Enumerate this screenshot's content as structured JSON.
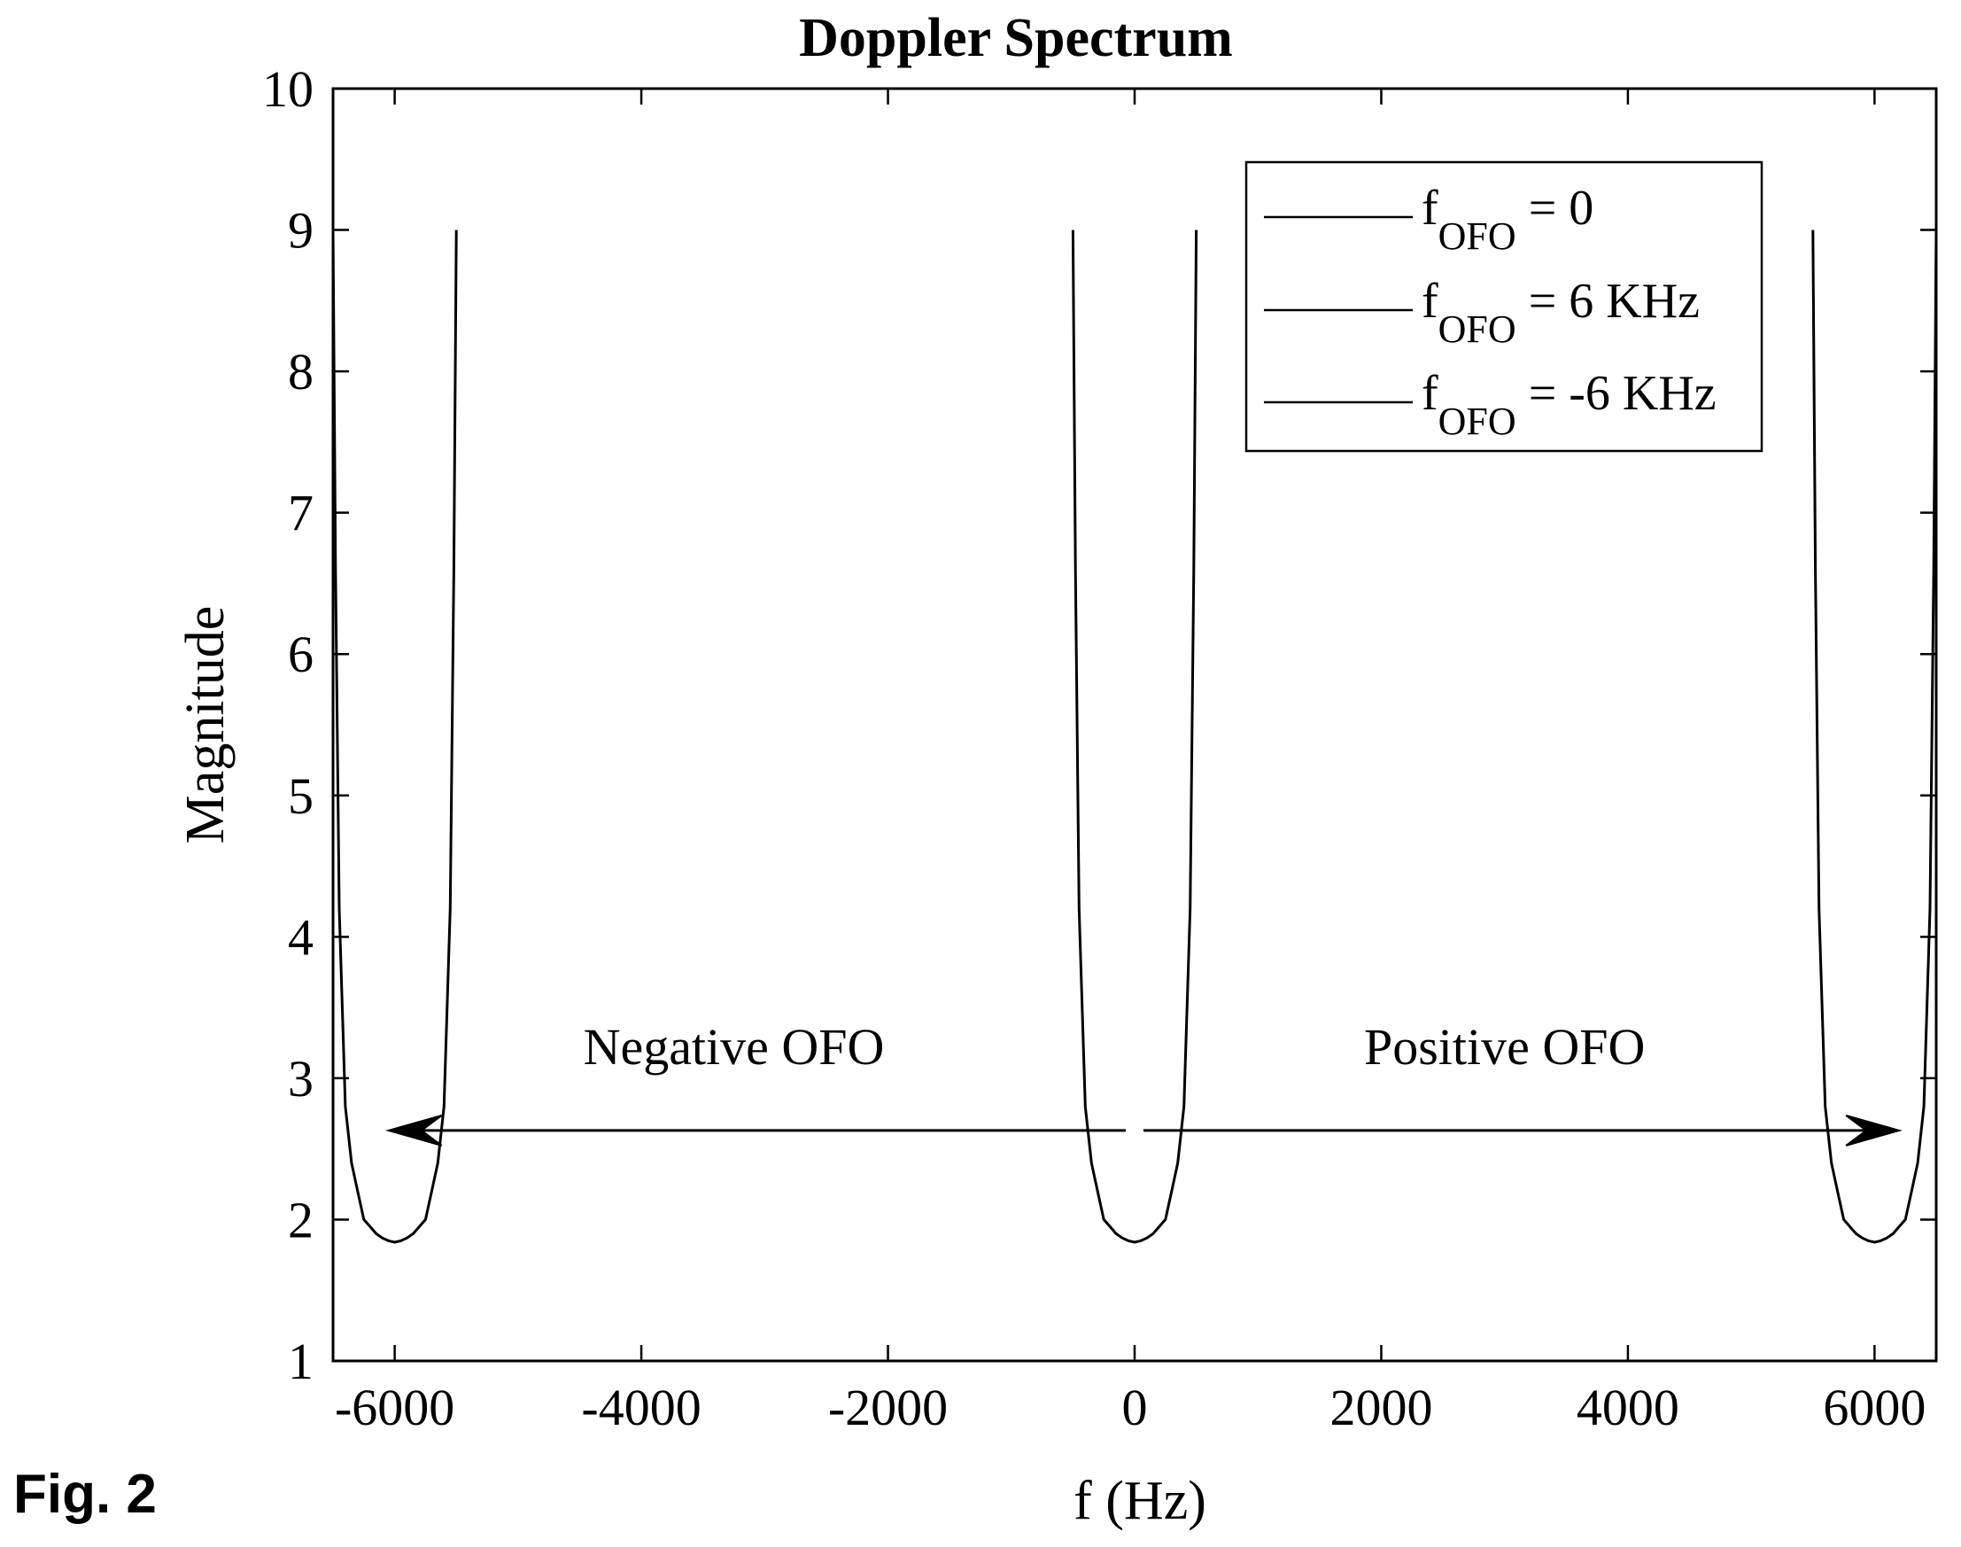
{
  "figure_label": "Fig. 2",
  "chart_data": {
    "type": "line",
    "title": "Doppler Spectrum",
    "xlabel": "f (Hz)",
    "ylabel": "Magnitude",
    "xlim": [
      -6500,
      6500
    ],
    "ylim": [
      1,
      10
    ],
    "xticks": [
      -6000,
      -4000,
      -2000,
      0,
      2000,
      4000,
      6000
    ],
    "yticks": [
      1,
      2,
      3,
      4,
      5,
      6,
      7,
      8,
      9,
      10
    ],
    "grid": false,
    "legend_position": "top-right",
    "legend": [
      {
        "main": "f",
        "sub": "OFO",
        "rest": " = 0"
      },
      {
        "main": "f",
        "sub": "OFO",
        "rest": " = 6 KHz"
      },
      {
        "main": "f",
        "sub": "OFO",
        "rest": " = -6 KHz"
      }
    ],
    "series": [
      {
        "center": 0,
        "fd": 500,
        "x": [
          -500,
          -480,
          -450,
          -400,
          -350,
          -300,
          -250,
          -200,
          -150,
          -100,
          -50,
          0,
          50,
          100,
          150,
          200,
          250,
          300,
          350,
          400,
          450,
          480,
          500
        ],
        "y": [
          9.0,
          6.6,
          4.2,
          2.8,
          2.4,
          2.2,
          2.0,
          1.95,
          1.9,
          1.87,
          1.85,
          1.84,
          1.85,
          1.87,
          1.9,
          1.95,
          2.0,
          2.2,
          2.4,
          2.8,
          4.2,
          6.6,
          9.0
        ]
      },
      {
        "center": 6000,
        "fd": 500,
        "x": [
          5500,
          5520,
          5550,
          5600,
          5650,
          5700,
          5750,
          5800,
          5850,
          5900,
          5950,
          6000,
          6050,
          6100,
          6150,
          6200,
          6250,
          6300,
          6350,
          6400,
          6450,
          6480,
          6500
        ],
        "y": [
          9.0,
          6.6,
          4.2,
          2.8,
          2.4,
          2.2,
          2.0,
          1.95,
          1.9,
          1.87,
          1.85,
          1.84,
          1.85,
          1.87,
          1.9,
          1.95,
          2.0,
          2.2,
          2.4,
          2.8,
          4.2,
          6.6,
          9.0
        ]
      },
      {
        "center": -6000,
        "fd": 500,
        "x": [
          -6500,
          -6480,
          -6450,
          -6400,
          -6350,
          -6300,
          -6250,
          -6200,
          -6150,
          -6100,
          -6050,
          -6000,
          -5950,
          -5900,
          -5850,
          -5800,
          -5750,
          -5700,
          -5650,
          -5600,
          -5550,
          -5520,
          -5500
        ],
        "y": [
          9.0,
          6.6,
          4.2,
          2.8,
          2.4,
          2.2,
          2.0,
          1.95,
          1.9,
          1.87,
          1.85,
          1.84,
          1.85,
          1.87,
          1.9,
          1.95,
          2.0,
          2.2,
          2.4,
          2.8,
          4.2,
          6.6,
          9.0
        ]
      }
    ],
    "annotations": [
      {
        "text": "Negative OFO",
        "x": -3250,
        "y": 3.1
      },
      {
        "text": "Positive OFO",
        "x": 3000,
        "y": 3.1
      }
    ],
    "arrows": [
      {
        "direction": "left",
        "x_from": 0,
        "x_to": -6050,
        "y": 2.63
      },
      {
        "direction": "right",
        "x_from": 0,
        "x_to": 6200,
        "y": 2.63
      }
    ]
  }
}
